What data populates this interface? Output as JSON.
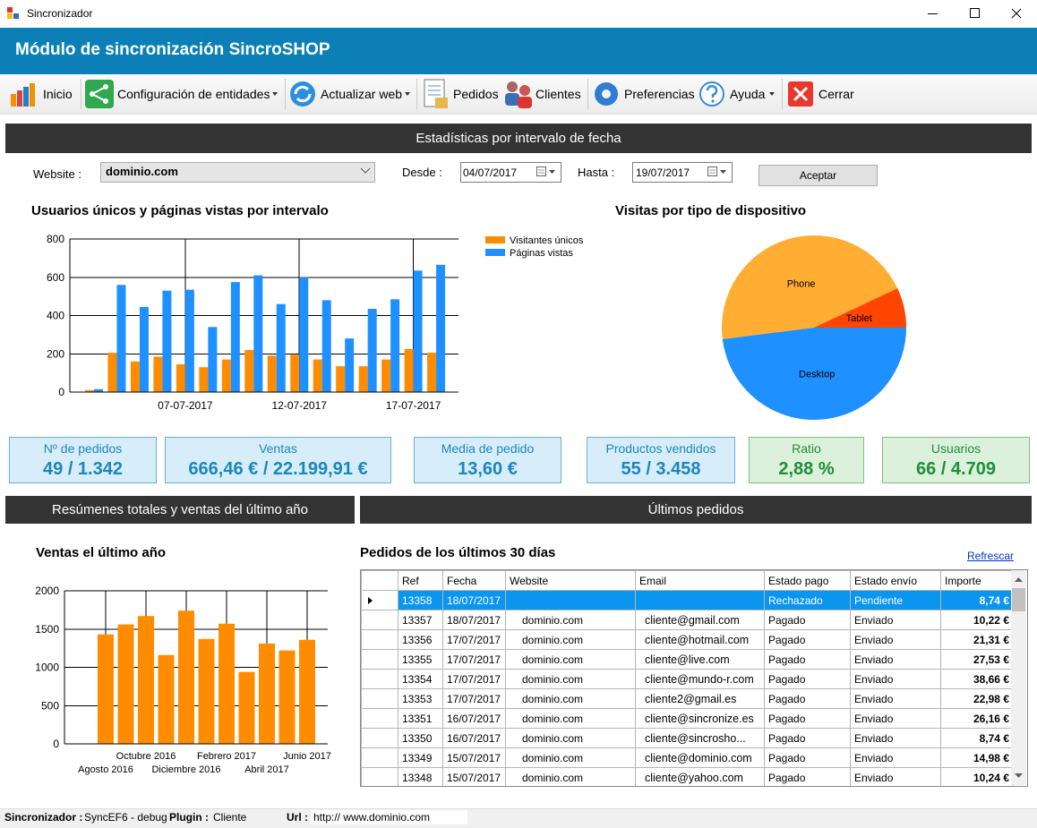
{
  "window": {
    "title": "Sincronizador"
  },
  "header": {
    "title": "Módulo de sincronización SincroSHOP"
  },
  "toolbar": [
    "Inicio",
    "Configuración de entidades",
    "Actualizar web",
    "Pedidos",
    "Clientes",
    "Preferencias",
    "Ayuda",
    "Cerrar"
  ],
  "stats_section": {
    "title": "Estadísticas por intervalo de fecha",
    "website_label": "Website :",
    "website": "dominio.com",
    "from_label": "Desde :",
    "from": "04/07/2017",
    "to_label": "Hasta :",
    "to": "19/07/2017",
    "button": "Aceptar"
  },
  "kpis": [
    {
      "label": "Nº de pedidos",
      "value": "49 / 1.342"
    },
    {
      "label": "Ventas",
      "value": "666,46 € / 22.199,91 €"
    },
    {
      "label": "Media de pedido",
      "value": "13,60 €"
    },
    {
      "label": "Productos vendidos",
      "value": "55 / 3.458"
    },
    {
      "label": "Ratio",
      "value": "2,88 %"
    },
    {
      "label": "Usuarios",
      "value": "66 / 4.709"
    }
  ],
  "summary_section": {
    "title": "Resúmenes totales y ventas del último año"
  },
  "orders_section": {
    "title": "Últimos pedidos",
    "subtitle": "Pedidos de los últimos 30 días",
    "refresh": "Refrescar",
    "columns": [
      "Ref",
      "Fecha",
      "Website",
      "Email",
      "Estado pago",
      "Estado envío",
      "Importe"
    ],
    "rows": [
      {
        "ref": "13358",
        "fecha": "18/07/2017",
        "pago": "Rechazado",
        "envio": "Pendiente",
        "importe": "8,74 €"
      },
      {
        "ref": "13357",
        "fecha": "18/07/2017",
        "website": "dominio.com",
        "email": "cliente@gmail.com",
        "pago": "Pagado",
        "envio": "Enviado",
        "importe": "10,22 €"
      },
      {
        "ref": "13356",
        "fecha": "17/07/2017",
        "website": "dominio.com",
        "email": "cliente@hotmail.com",
        "pago": "Pagado",
        "envio": "Enviado",
        "importe": "21,31 €"
      },
      {
        "ref": "13355",
        "fecha": "17/07/2017",
        "website": "dominio.com",
        "email": "cliente@live.com",
        "pago": "Pagado",
        "envio": "Enviado",
        "importe": "27,53 €"
      },
      {
        "ref": "13354",
        "fecha": "17/07/2017",
        "website": "dominio.com",
        "email": "cliente@mundo-r.com",
        "pago": "Pagado",
        "envio": "Enviado",
        "importe": "38,66 €"
      },
      {
        "ref": "13353",
        "fecha": "17/07/2017",
        "website": "dominio.com",
        "email": "cliente2@gmail.es",
        "pago": "Pagado",
        "envio": "Enviado",
        "importe": "22,98 €"
      },
      {
        "ref": "13351",
        "fecha": "16/07/2017",
        "website": "dominio.com",
        "email": "cliente@sincronize.es",
        "pago": "Pagado",
        "envio": "Enviado",
        "importe": "26,16 €"
      },
      {
        "ref": "13350",
        "fecha": "16/07/2017",
        "website": "dominio.com",
        "email": "cliente@sincrosho...",
        "pago": "Pagado",
        "envio": "Enviado",
        "importe": "8,74 €"
      },
      {
        "ref": "13349",
        "fecha": "15/07/2017",
        "website": "dominio.com",
        "email": "cliente@dominio.com",
        "pago": "Pagado",
        "envio": "Enviado",
        "importe": "14,98 €"
      },
      {
        "ref": "13348",
        "fecha": "15/07/2017",
        "website": "dominio.com",
        "email": "cliente@yahoo.com",
        "pago": "Pagado",
        "envio": "Enviado",
        "importe": "10,24 €"
      }
    ]
  },
  "status_bar": {
    "app_label": "Sincronizador :",
    "app": "SyncEF6 - debug",
    "plugin_label": "Plugin :",
    "plugin": "Cliente",
    "url_label": "Url :",
    "url": "http:// www.dominio.com"
  },
  "chart_data": [
    {
      "type": "bar",
      "title": "Usuarios únicos y páginas vistas por intervalo",
      "categories": [
        null,
        null,
        null,
        null,
        "07-07-2017",
        null,
        null,
        null,
        null,
        "12-07-2017",
        null,
        null,
        null,
        null,
        "17-07-2017",
        null
      ],
      "series": [
        {
          "name": "Visitantes únicos",
          "color": "#ff8c00",
          "values": [
            10,
            205,
            160,
            185,
            145,
            130,
            170,
            220,
            190,
            195,
            170,
            135,
            135,
            170,
            225,
            205
          ]
        },
        {
          "name": "Páginas vistas",
          "color": "#1e90ff",
          "values": [
            15,
            560,
            445,
            530,
            535,
            340,
            575,
            610,
            460,
            600,
            480,
            280,
            435,
            485,
            635,
            665
          ]
        }
      ],
      "ylim": [
        0,
        800
      ],
      "yticks": [
        0,
        200,
        400,
        600,
        800
      ],
      "grid": true,
      "legend": "upper right"
    },
    {
      "type": "pie",
      "title": "Visitas por tipo de dispositivo",
      "categories": [
        "Desktop",
        "Phone",
        "Tablet"
      ],
      "values": [
        48,
        45,
        7
      ],
      "colors": [
        "#1e90ff",
        "#ffad33",
        "#ff4500"
      ]
    },
    {
      "type": "bar",
      "title": "Ventas el último año",
      "categories": [
        "Agosto 2016",
        null,
        "Octubre 2016",
        null,
        "Diciembre 2016",
        null,
        "Febrero 2017",
        null,
        "Abril 2017",
        null,
        "Junio 2017"
      ],
      "values": [
        1430,
        1560,
        1670,
        1160,
        1740,
        1370,
        1570,
        940,
        1310,
        1220,
        1360
      ],
      "color": "#ff8c00",
      "ylim": [
        0,
        2000
      ],
      "yticks": [
        0,
        500,
        1000,
        1500,
        2000
      ],
      "grid": true
    }
  ]
}
